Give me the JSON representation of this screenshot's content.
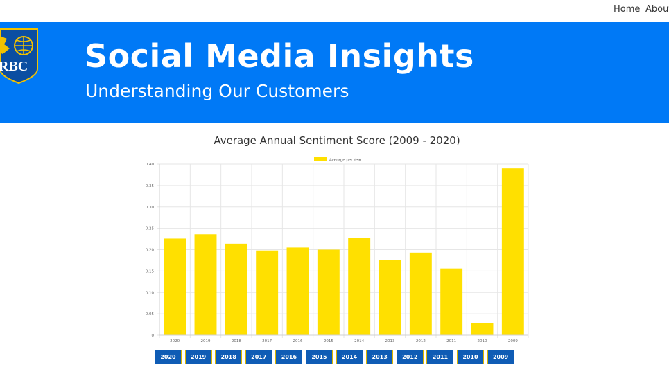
{
  "nav": {
    "home": "Home",
    "about": "About"
  },
  "header": {
    "logo_text": "RBC",
    "title": "Social Media Insights",
    "subtitle": "Understanding Our Customers",
    "background": "#0079f6"
  },
  "chart_title": "Average Annual Sentiment Score (2009 - 2020)",
  "chart_data": {
    "type": "bar",
    "title": "Average Annual Sentiment Score (2009 - 2020)",
    "categories": [
      "2020",
      "2019",
      "2018",
      "2017",
      "2016",
      "2015",
      "2014",
      "2013",
      "2012",
      "2011",
      "2010",
      "2009"
    ],
    "series": [
      {
        "name": "Average per Year",
        "values": [
          0.226,
          0.236,
          0.214,
          0.198,
          0.205,
          0.2,
          0.227,
          0.175,
          0.193,
          0.156,
          0.029,
          0.39
        ],
        "color": "#ffe000"
      }
    ],
    "yticks": [
      "0",
      "0.05",
      "0.10",
      "0.15",
      "0.20",
      "0.25",
      "0.30",
      "0.35",
      "0.40"
    ],
    "ylim": [
      0,
      0.4
    ],
    "grid": true,
    "legend": "top-center"
  },
  "year_buttons": [
    "2020",
    "2019",
    "2018",
    "2017",
    "2016",
    "2015",
    "2014",
    "2013",
    "2012",
    "2011",
    "2010",
    "2009"
  ],
  "colors": {
    "button_bg": "#0f5cb5",
    "button_border": "#d9b400",
    "bar": "#ffe000"
  }
}
